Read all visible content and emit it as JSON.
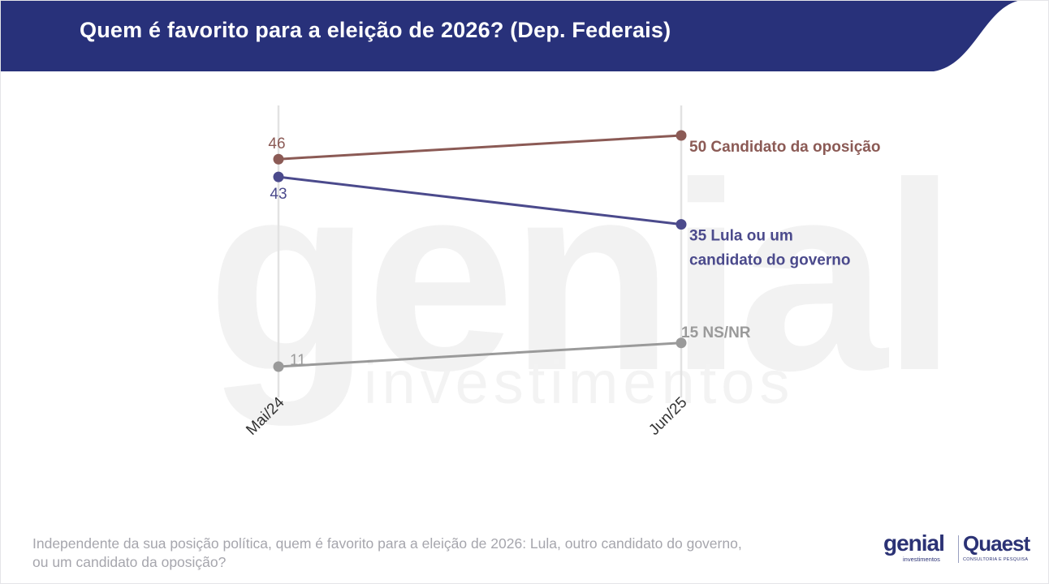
{
  "header": {
    "title": "Quem é favorito para a eleição de 2026? (Dep. Federais)",
    "color": "#28317a"
  },
  "footer": {
    "question_line1": "Independente da sua posição política, quem é favorito para a eleição de 2026: Lula, outro candidato do governo,",
    "question_line2": "ou um candidato da oposição?"
  },
  "logos": {
    "genial": "genial",
    "genial_sub": "investimentos",
    "quaest": "Quaest",
    "quaest_sub": "CONSULTORIA E PESQUISA"
  },
  "watermark": {
    "word": "genial",
    "sub": "investimentos"
  },
  "chart_data": {
    "type": "line",
    "x": [
      "Mai/24",
      "Jun/25"
    ],
    "series": [
      {
        "name": "Candidato da oposição",
        "values": [
          46,
          50
        ],
        "color": "#8b5a55",
        "start_label": "46",
        "end_label": "50 Candidato da oposição",
        "start_label_pos": "above",
        "end_label_lines": [
          "50 Candidato da oposição"
        ]
      },
      {
        "name": "Lula ou um candidato do governo",
        "values": [
          43,
          35
        ],
        "color": "#4b4a8c",
        "start_label": "43",
        "end_label": "35 Lula ou um candidato do governo",
        "start_label_pos": "below",
        "end_label_lines": [
          "35 Lula ou um",
          "candidato do governo"
        ]
      },
      {
        "name": "NS/NR",
        "values": [
          11,
          15
        ],
        "color": "#9a9a9a",
        "start_label": "11",
        "end_label": "15 NS/NR",
        "start_label_pos": "right",
        "end_label_lines": [
          "15 NS/NR"
        ]
      }
    ],
    "ylim": [
      5,
      55
    ],
    "grid": "vertical",
    "legend": "inline labels at line ends"
  }
}
